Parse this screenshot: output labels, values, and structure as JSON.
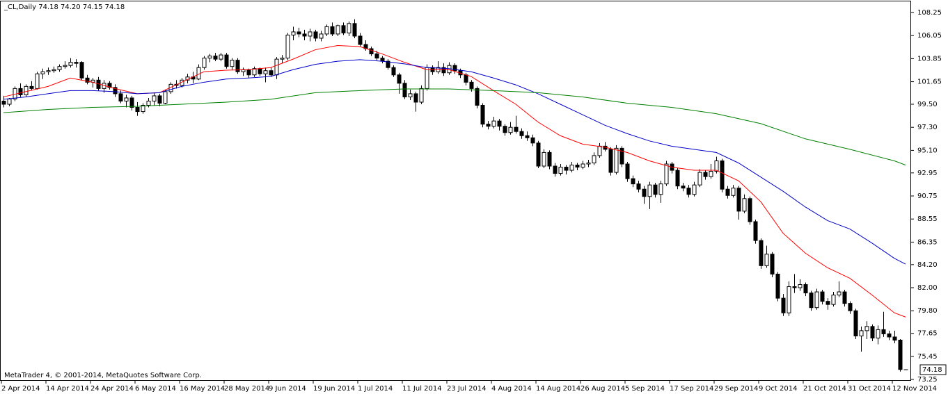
{
  "chart_data": {
    "type": "candlestick",
    "title": "_CL,Daily  74.18 74.20 74.15 74.18",
    "footer": "MetaTrader 4, © 2001-2014, MetaQuotes Software Corp.",
    "current_price": 74.18,
    "ylim": [
      73.12,
      109.31
    ],
    "yticks": [
      {
        "value": 108.25,
        "label": "108.25"
      },
      {
        "value": 106.05,
        "label": "106.05"
      },
      {
        "value": 103.85,
        "label": "103.85"
      },
      {
        "value": 101.65,
        "label": "101.65"
      },
      {
        "value": 99.5,
        "label": "99.50"
      },
      {
        "value": 97.3,
        "label": "97.30"
      },
      {
        "value": 95.1,
        "label": "95.10"
      },
      {
        "value": 92.95,
        "label": "92.95"
      },
      {
        "value": 90.75,
        "label": "90.75"
      },
      {
        "value": 88.55,
        "label": "88.55"
      },
      {
        "value": 86.35,
        "label": "86.35"
      },
      {
        "value": 84.2,
        "label": "84.20"
      },
      {
        "value": 82.0,
        "label": "82.00"
      },
      {
        "value": 79.8,
        "label": "79.80"
      },
      {
        "value": 77.65,
        "label": "77.65"
      },
      {
        "value": 75.45,
        "label": "75.45"
      },
      {
        "value": 73.25,
        "label": "73.25"
      }
    ],
    "grid": false,
    "bull_color": "#ffffff",
    "bear_color": "#000000",
    "categories": [
      "2 Apr 2014",
      null,
      null,
      null,
      null,
      null,
      null,
      null,
      "14 Apr 2014",
      null,
      null,
      null,
      null,
      null,
      null,
      null,
      "24 Apr 2014",
      null,
      null,
      null,
      null,
      null,
      null,
      null,
      "6 May 2014",
      null,
      null,
      null,
      null,
      null,
      null,
      null,
      "16 May 2014",
      null,
      null,
      null,
      null,
      null,
      null,
      null,
      "28 May 2014",
      null,
      null,
      null,
      null,
      null,
      null,
      null,
      "9 Jun 2014",
      null,
      null,
      null,
      null,
      null,
      null,
      null,
      "19 Jun 2014",
      null,
      null,
      null,
      null,
      null,
      null,
      null,
      "1 Jul 2014",
      null,
      null,
      null,
      null,
      null,
      null,
      null,
      "11 Jul 2014",
      null,
      null,
      null,
      null,
      null,
      null,
      null,
      "23 Jul 2014",
      null,
      null,
      null,
      null,
      null,
      null,
      null,
      "4 Aug 2014",
      null,
      null,
      null,
      null,
      null,
      null,
      null,
      "14 Aug 2014",
      null,
      null,
      null,
      null,
      null,
      null,
      null,
      "26 Aug 2014",
      null,
      null,
      null,
      null,
      null,
      null,
      null,
      "5 Sep 2014",
      null,
      null,
      null,
      null,
      null,
      null,
      null,
      "17 Sep 2014",
      null,
      null,
      null,
      null,
      null,
      null,
      null,
      "29 Sep 2014",
      null,
      null,
      null,
      null,
      null,
      null,
      null,
      "9 Oct 2014",
      null,
      null,
      null,
      null,
      null,
      null,
      null,
      "21 Oct 2014",
      null,
      null,
      null,
      null,
      null,
      null,
      null,
      "31 Oct 2014",
      null,
      null,
      null,
      null,
      null,
      null,
      null,
      "12 Nov 2014",
      null,
      null
    ],
    "ohlc": [
      [
        99.8,
        100.3,
        99.2,
        99.5
      ],
      [
        99.5,
        100.1,
        99.3,
        100.0
      ],
      [
        100.0,
        101.2,
        99.8,
        101.0
      ],
      [
        101.0,
        101.5,
        100.2,
        100.4
      ],
      [
        100.4,
        101.4,
        100.2,
        101.2
      ],
      [
        101.2,
        101.7,
        100.8,
        101.0
      ],
      [
        101.0,
        102.6,
        100.9,
        102.4
      ],
      [
        102.4,
        102.9,
        101.9,
        102.6
      ],
      [
        102.6,
        103.0,
        102.3,
        102.7
      ],
      [
        102.7,
        103.1,
        102.5,
        102.8
      ],
      [
        102.8,
        103.3,
        102.6,
        103.1
      ],
      [
        103.1,
        103.6,
        102.9,
        103.2
      ],
      [
        103.2,
        103.9,
        103.0,
        103.5
      ],
      [
        103.5,
        103.8,
        103.0,
        103.4
      ],
      [
        103.5,
        103.6,
        101.8,
        102.0
      ],
      [
        102.0,
        102.3,
        101.4,
        101.6
      ],
      [
        101.6,
        102.0,
        101.1,
        101.8
      ],
      [
        101.8,
        102.1,
        100.8,
        101.0
      ],
      [
        101.0,
        101.8,
        100.6,
        101.5
      ],
      [
        101.5,
        101.7,
        100.9,
        101.1
      ],
      [
        101.1,
        101.4,
        100.2,
        100.5
      ],
      [
        100.5,
        100.8,
        99.6,
        99.8
      ],
      [
        99.8,
        100.4,
        99.2,
        100.1
      ],
      [
        100.1,
        100.3,
        98.9,
        99.2
      ],
      [
        99.2,
        99.7,
        98.4,
        98.8
      ],
      [
        98.8,
        99.6,
        98.6,
        99.4
      ],
      [
        99.4,
        100.1,
        99.2,
        99.8
      ],
      [
        99.8,
        100.6,
        99.4,
        100.3
      ],
      [
        100.3,
        100.5,
        99.3,
        99.6
      ],
      [
        99.6,
        100.9,
        99.5,
        100.7
      ],
      [
        100.7,
        101.6,
        100.5,
        101.4
      ],
      [
        101.4,
        101.8,
        101.0,
        101.3
      ],
      [
        101.3,
        102.0,
        101.1,
        101.8
      ],
      [
        101.8,
        102.4,
        101.5,
        102.1
      ],
      [
        102.1,
        102.6,
        101.5,
        101.9
      ],
      [
        101.9,
        103.3,
        101.8,
        103.0
      ],
      [
        103.0,
        104.1,
        102.8,
        103.9
      ],
      [
        103.9,
        104.3,
        103.5,
        104.1
      ],
      [
        104.1,
        104.4,
        103.6,
        103.8
      ],
      [
        103.8,
        104.4,
        103.6,
        104.2
      ],
      [
        104.2,
        104.4,
        102.9,
        103.1
      ],
      [
        103.1,
        103.9,
        102.8,
        103.7
      ],
      [
        103.7,
        103.9,
        102.4,
        102.6
      ],
      [
        102.6,
        103.0,
        102.2,
        102.8
      ],
      [
        102.8,
        102.9,
        102.0,
        102.3
      ],
      [
        102.3,
        103.1,
        102.1,
        102.9
      ],
      [
        102.9,
        103.0,
        102.2,
        102.4
      ],
      [
        102.4,
        103.0,
        101.6,
        102.7
      ],
      [
        102.7,
        103.0,
        102.1,
        102.3
      ],
      [
        102.3,
        104.0,
        101.9,
        103.8
      ],
      [
        103.8,
        104.2,
        103.4,
        103.9
      ],
      [
        103.9,
        106.3,
        103.7,
        106.1
      ],
      [
        106.1,
        106.9,
        105.6,
        106.4
      ],
      [
        106.4,
        106.8,
        105.9,
        106.2
      ],
      [
        106.2,
        106.6,
        105.6,
        106.0
      ],
      [
        106.0,
        106.7,
        105.5,
        106.4
      ],
      [
        106.4,
        106.6,
        105.5,
        105.8
      ],
      [
        105.8,
        106.5,
        105.5,
        106.2
      ],
      [
        106.2,
        107.1,
        106.0,
        106.9
      ],
      [
        106.9,
        107.3,
        106.0,
        106.2
      ],
      [
        106.2,
        107.1,
        106.0,
        107.0
      ],
      [
        107.0,
        107.3,
        106.1,
        106.3
      ],
      [
        106.3,
        107.4,
        106.0,
        107.2
      ],
      [
        107.2,
        107.6,
        105.8,
        106.0
      ],
      [
        106.0,
        106.3,
        105.0,
        105.2
      ],
      [
        105.2,
        105.6,
        104.6,
        104.8
      ],
      [
        104.8,
        105.0,
        104.1,
        104.3
      ],
      [
        104.3,
        104.6,
        103.7,
        103.9
      ],
      [
        103.9,
        104.1,
        103.4,
        103.6
      ],
      [
        103.6,
        103.8,
        102.8,
        103.0
      ],
      [
        103.0,
        103.2,
        102.1,
        102.3
      ],
      [
        102.3,
        102.5,
        100.5,
        101.5
      ],
      [
        101.5,
        101.8,
        100.0,
        100.2
      ],
      [
        100.2,
        100.9,
        99.9,
        100.5
      ],
      [
        100.5,
        100.7,
        98.8,
        99.7
      ],
      [
        99.7,
        101.3,
        99.5,
        101.0
      ],
      [
        101.0,
        103.3,
        100.8,
        103.0
      ],
      [
        103.0,
        103.2,
        102.3,
        102.6
      ],
      [
        102.6,
        103.6,
        102.4,
        103.0
      ],
      [
        103.0,
        103.4,
        102.2,
        102.5
      ],
      [
        102.5,
        103.5,
        102.3,
        103.2
      ],
      [
        103.2,
        103.4,
        102.4,
        102.7
      ],
      [
        102.7,
        102.9,
        102.0,
        102.3
      ],
      [
        102.3,
        102.5,
        101.3,
        101.6
      ],
      [
        101.6,
        101.8,
        100.7,
        101.0
      ],
      [
        101.0,
        101.2,
        99.1,
        99.4
      ],
      [
        99.4,
        99.6,
        97.3,
        97.6
      ],
      [
        97.6,
        97.9,
        97.1,
        97.4
      ],
      [
        97.4,
        98.3,
        97.2,
        97.9
      ],
      [
        97.9,
        98.1,
        97.0,
        97.4
      ],
      [
        97.4,
        97.6,
        96.5,
        96.8
      ],
      [
        96.8,
        97.8,
        96.6,
        97.3
      ],
      [
        97.3,
        98.4,
        96.7,
        96.9
      ],
      [
        96.9,
        97.2,
        96.2,
        96.5
      ],
      [
        96.5,
        96.9,
        96.0,
        96.3
      ],
      [
        96.3,
        96.6,
        95.5,
        95.8
      ],
      [
        95.8,
        96.0,
        93.4,
        93.6
      ],
      [
        93.6,
        95.2,
        93.4,
        94.9
      ],
      [
        94.9,
        95.1,
        93.3,
        93.6
      ],
      [
        93.6,
        93.9,
        92.6,
        92.9
      ],
      [
        92.9,
        93.8,
        92.7,
        93.5
      ],
      [
        93.5,
        93.7,
        92.8,
        93.2
      ],
      [
        93.2,
        94.0,
        93.0,
        93.7
      ],
      [
        93.7,
        93.9,
        93.2,
        93.5
      ],
      [
        93.5,
        94.1,
        93.3,
        93.8
      ],
      [
        93.8,
        94.2,
        93.5,
        93.9
      ],
      [
        93.9,
        94.9,
        93.7,
        94.6
      ],
      [
        94.6,
        95.8,
        94.4,
        95.5
      ],
      [
        95.5,
        95.9,
        95.0,
        95.2
      ],
      [
        95.2,
        95.4,
        92.7,
        93.0
      ],
      [
        93.0,
        95.6,
        92.8,
        95.3
      ],
      [
        95.3,
        95.5,
        93.5,
        93.8
      ],
      [
        93.8,
        94.0,
        92.1,
        92.4
      ],
      [
        92.4,
        92.7,
        91.6,
        91.9
      ],
      [
        91.9,
        92.2,
        91.1,
        91.4
      ],
      [
        91.4,
        91.7,
        90.0,
        90.7
      ],
      [
        90.7,
        92.1,
        89.5,
        91.8
      ],
      [
        91.8,
        92.0,
        90.6,
        90.9
      ],
      [
        90.9,
        92.2,
        90.1,
        91.9
      ],
      [
        91.9,
        94.1,
        91.7,
        93.8
      ],
      [
        93.8,
        94.0,
        92.9,
        93.2
      ],
      [
        93.2,
        93.4,
        91.4,
        91.7
      ],
      [
        91.7,
        92.0,
        91.2,
        91.5
      ],
      [
        91.5,
        91.8,
        90.6,
        90.9
      ],
      [
        90.9,
        92.1,
        90.7,
        91.8
      ],
      [
        91.8,
        93.3,
        91.6,
        93.0
      ],
      [
        93.0,
        93.2,
        92.3,
        92.6
      ],
      [
        92.6,
        93.8,
        92.4,
        93.1
      ],
      [
        93.1,
        94.5,
        92.9,
        94.1
      ],
      [
        94.1,
        94.3,
        91.1,
        91.4
      ],
      [
        91.4,
        91.7,
        90.5,
        90.8
      ],
      [
        90.8,
        91.8,
        90.6,
        91.5
      ],
      [
        91.5,
        91.7,
        88.5,
        89.3
      ],
      [
        89.3,
        90.9,
        89.1,
        90.5
      ],
      [
        90.5,
        90.7,
        88.0,
        88.3
      ],
      [
        88.3,
        88.5,
        86.2,
        86.5
      ],
      [
        86.5,
        86.7,
        83.8,
        84.1
      ],
      [
        84.1,
        86.0,
        83.9,
        85.2
      ],
      [
        85.2,
        85.4,
        83.0,
        83.3
      ],
      [
        83.3,
        83.5,
        80.7,
        81.0
      ],
      [
        81.0,
        81.4,
        79.3,
        79.6
      ],
      [
        79.6,
        82.6,
        79.3,
        82.1
      ],
      [
        82.1,
        83.3,
        81.5,
        82.0
      ],
      [
        82.0,
        82.8,
        81.7,
        82.3
      ],
      [
        82.3,
        82.5,
        81.2,
        81.5
      ],
      [
        81.5,
        81.7,
        79.8,
        80.1
      ],
      [
        80.1,
        81.9,
        79.9,
        81.6
      ],
      [
        81.6,
        81.8,
        80.4,
        80.7
      ],
      [
        80.7,
        81.0,
        79.9,
        80.4
      ],
      [
        80.4,
        81.6,
        80.2,
        81.3
      ],
      [
        81.3,
        82.6,
        81.1,
        81.6
      ],
      [
        81.6,
        81.8,
        80.2,
        80.5
      ],
      [
        80.5,
        80.7,
        79.5,
        79.8
      ],
      [
        79.8,
        80.0,
        77.1,
        77.4
      ],
      [
        77.4,
        78.3,
        75.9,
        77.9
      ],
      [
        77.9,
        78.8,
        77.1,
        78.3
      ],
      [
        78.3,
        78.5,
        76.9,
        77.2
      ],
      [
        77.2,
        78.4,
        76.6,
        78.0
      ],
      [
        78.0,
        79.7,
        77.3,
        77.6
      ],
      [
        77.6,
        77.9,
        77.0,
        77.3
      ],
      [
        77.3,
        77.9,
        76.7,
        77.0
      ],
      [
        77.0,
        77.1,
        74.0,
        74.2
      ],
      [
        74.18,
        74.2,
        74.15,
        74.18
      ]
    ],
    "series": [
      {
        "color": "#ff0000",
        "x": [
          0,
          4,
          8,
          12,
          16,
          20,
          24,
          28,
          32,
          36,
          40,
          44,
          48,
          52,
          56,
          60,
          64,
          68,
          72,
          76,
          80,
          84,
          88,
          92,
          96,
          100,
          104,
          108,
          112,
          116,
          120,
          124,
          128,
          132,
          136,
          140,
          144,
          148,
          152,
          156,
          160,
          162
        ],
        "values": [
          100.2,
          100.7,
          101.2,
          102.0,
          101.6,
          101.0,
          100.5,
          100.6,
          101.6,
          102.6,
          102.75,
          102.8,
          103.0,
          103.8,
          104.7,
          105.1,
          105.0,
          104.3,
          103.5,
          102.8,
          102.8,
          102.15,
          100.8,
          99.5,
          97.8,
          96.5,
          95.7,
          95.4,
          94.9,
          94.1,
          93.5,
          93.2,
          93.2,
          92.2,
          90.2,
          87.2,
          85.3,
          83.9,
          82.9,
          81.3,
          79.6,
          79.2
        ]
      },
      {
        "color": "#0000c8",
        "x": [
          0,
          4,
          8,
          12,
          16,
          20,
          24,
          28,
          32,
          36,
          40,
          44,
          48,
          52,
          56,
          60,
          64,
          68,
          72,
          76,
          80,
          84,
          88,
          92,
          96,
          100,
          104,
          108,
          112,
          116,
          120,
          124,
          128,
          132,
          136,
          140,
          144,
          148,
          152,
          156,
          160,
          162
        ],
        "values": [
          99.97,
          100.2,
          100.5,
          100.8,
          100.8,
          100.7,
          100.5,
          100.6,
          101.2,
          101.6,
          101.9,
          102.0,
          102.15,
          102.8,
          103.3,
          103.6,
          103.75,
          103.6,
          103.35,
          103.0,
          102.9,
          102.6,
          102.0,
          101.35,
          100.5,
          99.5,
          98.5,
          97.5,
          96.7,
          96.0,
          95.5,
          95.2,
          94.9,
          93.9,
          92.55,
          91.2,
          89.7,
          88.4,
          87.6,
          86.25,
          84.8,
          84.25
        ]
      },
      {
        "color": "#008000",
        "x": [
          0,
          8,
          16,
          24,
          32,
          40,
          48,
          56,
          64,
          72,
          80,
          88,
          96,
          104,
          112,
          120,
          128,
          136,
          144,
          152,
          160,
          162
        ],
        "values": [
          98.7,
          99.0,
          99.2,
          99.3,
          99.5,
          99.7,
          99.97,
          100.6,
          100.8,
          100.96,
          100.96,
          100.8,
          100.6,
          100.2,
          99.6,
          99.2,
          98.6,
          97.65,
          96.2,
          95.2,
          94.1,
          93.7
        ]
      }
    ]
  }
}
